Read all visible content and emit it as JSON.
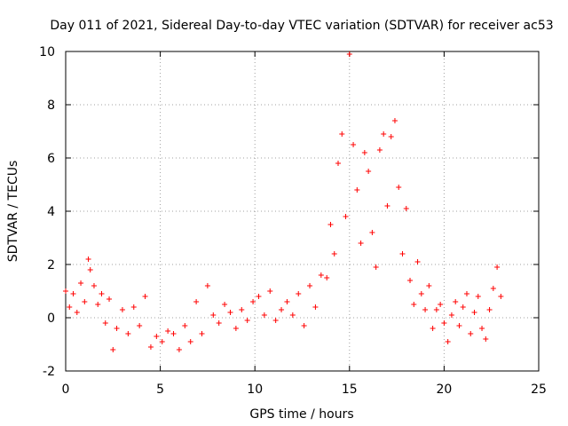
{
  "chart_data": {
    "type": "scatter",
    "title": "Day 011 of 2021, Sidereal Day-to-day VTEC variation (SDTVAR) for receiver ac53",
    "xlabel": "GPS time / hours",
    "ylabel": "SDTVAR / TECUs",
    "xlim": [
      0,
      25
    ],
    "ylim": [
      -2,
      10
    ],
    "xticks": [
      "0",
      "5",
      "10",
      "15",
      "20",
      "25"
    ],
    "yticks": [
      "-2",
      "0",
      "2",
      "4",
      "6",
      "8",
      "10"
    ],
    "grid": true,
    "marker": "+",
    "color": "#ff0000",
    "series": [
      {
        "name": "SDTVAR",
        "x": [
          0.0,
          0.2,
          0.4,
          0.6,
          0.8,
          1.0,
          1.2,
          1.3,
          1.5,
          1.7,
          1.9,
          2.1,
          2.3,
          2.5,
          2.7,
          3.0,
          3.3,
          3.6,
          3.9,
          4.2,
          4.5,
          4.8,
          5.1,
          5.4,
          5.7,
          6.0,
          6.3,
          6.6,
          6.9,
          7.2,
          7.5,
          7.8,
          8.1,
          8.4,
          8.7,
          9.0,
          9.3,
          9.6,
          9.9,
          10.2,
          10.5,
          10.8,
          11.1,
          11.4,
          11.7,
          12.0,
          12.3,
          12.6,
          12.9,
          13.2,
          13.5,
          13.8,
          14.0,
          14.2,
          14.4,
          14.6,
          14.8,
          15.0,
          15.2,
          15.4,
          15.6,
          15.8,
          16.0,
          16.2,
          16.4,
          16.6,
          16.8,
          17.0,
          17.2,
          17.4,
          17.6,
          17.8,
          18.0,
          18.2,
          18.4,
          18.6,
          18.8,
          19.0,
          19.2,
          19.4,
          19.6,
          19.8,
          20.0,
          20.2,
          20.4,
          20.6,
          20.8,
          21.0,
          21.2,
          21.4,
          21.6,
          21.8,
          22.0,
          22.2,
          22.4,
          22.6,
          22.8,
          23.0
        ],
        "y": [
          1.0,
          0.4,
          0.9,
          0.2,
          1.3,
          0.6,
          2.2,
          1.8,
          1.2,
          0.5,
          0.9,
          -0.2,
          0.7,
          -1.2,
          -0.4,
          0.3,
          -0.6,
          0.4,
          -0.3,
          0.8,
          -1.1,
          -0.7,
          -0.9,
          -0.5,
          -0.6,
          -1.2,
          -0.3,
          -0.9,
          0.6,
          -0.6,
          1.2,
          0.1,
          -0.2,
          0.5,
          0.2,
          -0.4,
          0.3,
          -0.1,
          0.6,
          0.8,
          0.1,
          1.0,
          -0.1,
          0.3,
          0.6,
          0.1,
          0.9,
          -0.3,
          1.2,
          0.4,
          1.6,
          1.5,
          3.5,
          2.4,
          5.8,
          6.9,
          3.8,
          9.9,
          6.5,
          4.8,
          2.8,
          6.2,
          5.5,
          3.2,
          1.9,
          6.3,
          6.9,
          4.2,
          6.8,
          7.4,
          4.9,
          2.4,
          4.1,
          1.4,
          0.5,
          2.1,
          0.9,
          0.3,
          1.2,
          -0.4,
          0.3,
          0.5,
          -0.2,
          -0.9,
          0.1,
          0.6,
          -0.3,
          0.4,
          0.9,
          -0.6,
          0.2,
          0.8,
          -0.4,
          -0.8,
          0.3,
          1.1,
          1.9,
          0.8
        ]
      }
    ]
  }
}
